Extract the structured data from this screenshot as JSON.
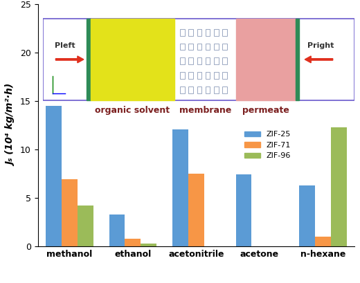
{
  "chart_data": {
    "type": "bar",
    "y_label": "Jₛ (10⁴ kg/m²·h)",
    "categories": [
      "methanol",
      "ethanol",
      "acetonitrile",
      "acetone",
      "n-hexane"
    ],
    "series": [
      {
        "name": "ZIF-25",
        "color": "#5b9bd5",
        "values": [
          14.5,
          3.3,
          12.1,
          7.4,
          6.3
        ]
      },
      {
        "name": "ZIF-71",
        "color": "#f79646",
        "values": [
          6.9,
          0.8,
          7.5,
          null,
          1.0
        ]
      },
      {
        "name": "ZIF-96",
        "color": "#9bbb59",
        "values": [
          4.2,
          0.3,
          null,
          null,
          12.3
        ]
      }
    ],
    "ylim": [
      0,
      25
    ],
    "yticks": [
      0,
      5,
      10,
      15,
      20,
      25
    ],
    "legend": "lower right",
    "annotations": [
      "organic solvent",
      "membrane",
      "permeate",
      "Pleft",
      "Pright"
    ]
  }
}
